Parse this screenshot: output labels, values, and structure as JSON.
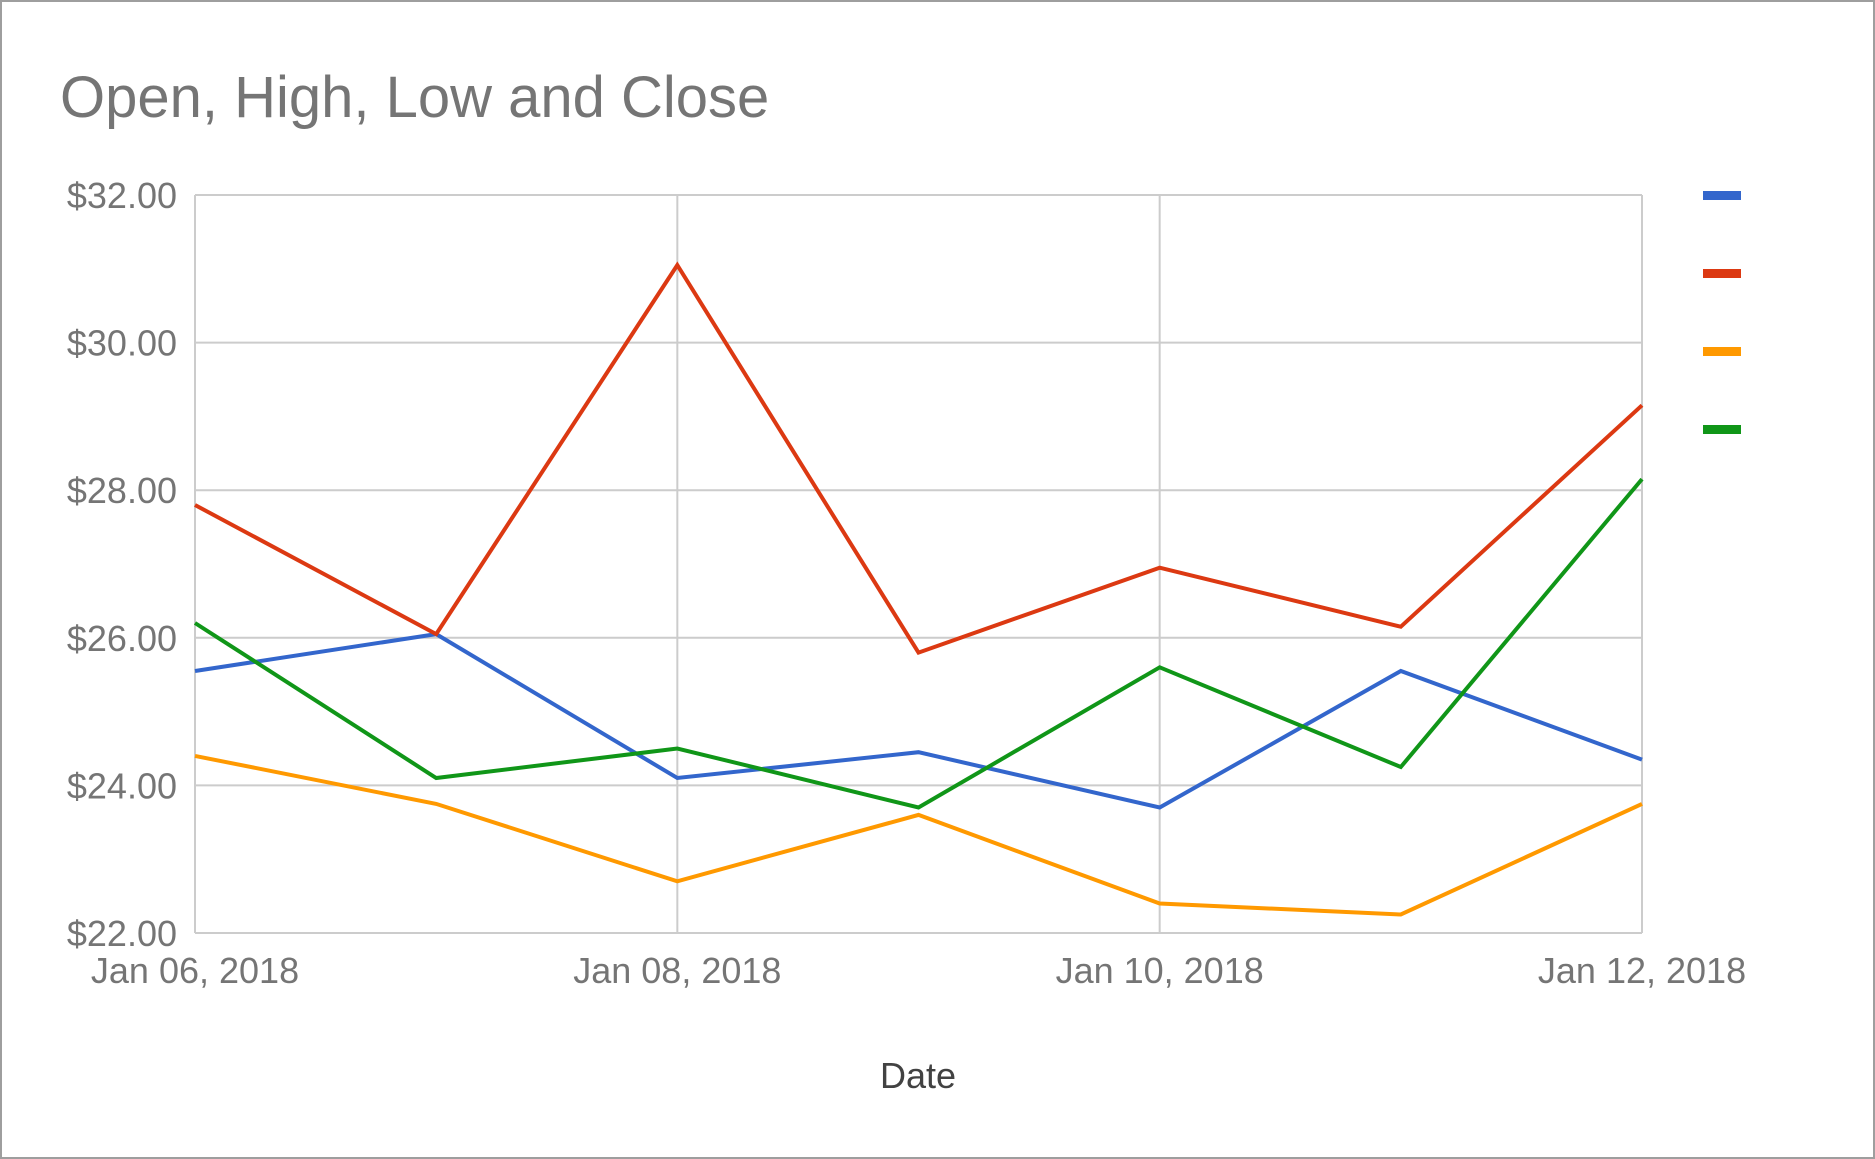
{
  "colors": {
    "background": "#ffffff",
    "grid": "#cccccc",
    "text": "#757575"
  },
  "chart_data": {
    "type": "line",
    "title": "Open, High, Low and Close",
    "xlabel": "Date",
    "ylabel": "",
    "x": [
      "2018-01-06",
      "2018-01-07",
      "2018-01-08",
      "2018-01-09",
      "2018-01-10",
      "2018-01-11",
      "2018-01-12"
    ],
    "x_tick_labels": [
      "Jan 06, 2018",
      "Jan 08, 2018",
      "Jan 10, 2018",
      "Jan 12, 2018"
    ],
    "x_tick_indices": [
      0,
      2,
      4,
      6
    ],
    "ylim": [
      22,
      32
    ],
    "y_ticks": [
      22,
      24,
      26,
      28,
      30,
      32
    ],
    "y_tick_labels": [
      "$22.00",
      "$24.00",
      "$26.00",
      "$28.00",
      "$30.00",
      "$32.00"
    ],
    "grid": true,
    "legend": "right",
    "series": [
      {
        "name": "",
        "color": "#3366cc",
        "values": [
          25.55,
          26.05,
          24.1,
          24.45,
          23.7,
          25.55,
          24.35
        ]
      },
      {
        "name": "",
        "color": "#dc3912",
        "values": [
          27.8,
          26.05,
          31.05,
          25.8,
          26.95,
          26.15,
          29.15
        ]
      },
      {
        "name": "",
        "color": "#ff9900",
        "values": [
          24.4,
          23.75,
          22.7,
          23.6,
          22.4,
          22.25,
          23.75
        ]
      },
      {
        "name": "",
        "color": "#109618",
        "values": [
          26.2,
          24.1,
          24.5,
          23.7,
          25.6,
          24.25,
          28.15
        ]
      }
    ]
  }
}
